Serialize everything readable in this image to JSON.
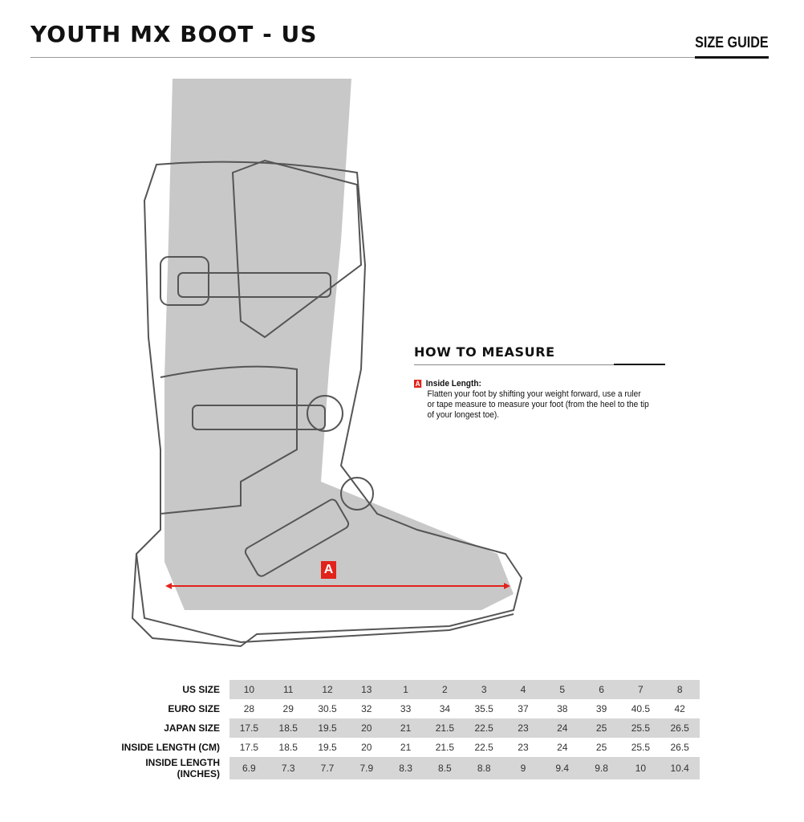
{
  "header": {
    "title": "YOUTH MX BOOT - US",
    "section": "SIZE GUIDE"
  },
  "illustration": {
    "marker": "A",
    "arrow_color": "#e2231a"
  },
  "how_to_measure": {
    "title": "HOW TO MEASURE",
    "items": [
      {
        "badge": "A",
        "label": "Inside Length:",
        "text": "Flatten your foot by shifting your weight forward, use a ruler or tape measure to measure your foot (from the heel to the tip of your longest toe)."
      }
    ]
  },
  "size_table": {
    "rows": [
      {
        "label": "US SIZE",
        "values": [
          "10",
          "11",
          "12",
          "13",
          "1",
          "2",
          "3",
          "4",
          "5",
          "6",
          "7",
          "8"
        ]
      },
      {
        "label": "EURO SIZE",
        "values": [
          "28",
          "29",
          "30.5",
          "32",
          "33",
          "34",
          "35.5",
          "37",
          "38",
          "39",
          "40.5",
          "42"
        ]
      },
      {
        "label": "JAPAN SIZE",
        "values": [
          "17.5",
          "18.5",
          "19.5",
          "20",
          "21",
          "21.5",
          "22.5",
          "23",
          "24",
          "25",
          "25.5",
          "26.5"
        ]
      },
      {
        "label": "INSIDE LENGTH (CM)",
        "values": [
          "17.5",
          "18.5",
          "19.5",
          "20",
          "21",
          "21.5",
          "22.5",
          "23",
          "24",
          "25",
          "25.5",
          "26.5"
        ]
      },
      {
        "label": "INSIDE LENGTH (INCHES)",
        "values": [
          "6.9",
          "7.3",
          "7.7",
          "7.9",
          "8.3",
          "8.5",
          "8.8",
          "9",
          "9.4",
          "9.8",
          "10",
          "10.4"
        ]
      }
    ]
  }
}
